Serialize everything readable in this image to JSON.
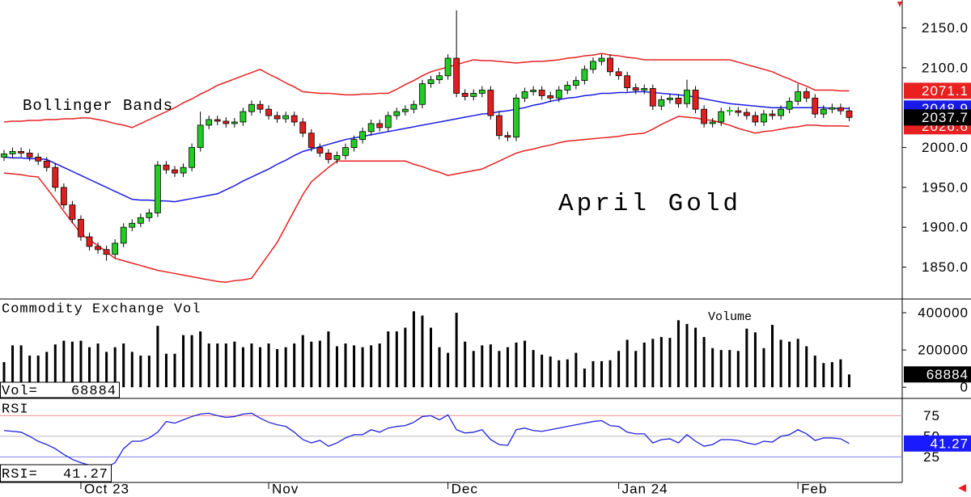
{
  "chart_data": [
    {
      "type": "candlestick",
      "annotations": [
        "Bollinger Bands",
        "April Gold"
      ],
      "open": [
        1988,
        1992,
        1995,
        1993,
        1988,
        1983,
        1975,
        1950,
        1928,
        1910,
        1888,
        1876,
        1872,
        1866,
        1880,
        1900,
        1905,
        1912,
        1918,
        1978,
        1972,
        1968,
        1975,
        2000,
        2028,
        2035,
        2033,
        2030,
        2032,
        2045,
        2054,
        2048,
        2040,
        2036,
        2040,
        2032,
        2018,
        2000,
        1993,
        1985,
        1990,
        2000,
        2010,
        2020,
        2030,
        2025,
        2040,
        2045,
        2048,
        2054,
        2080,
        2085,
        2090,
        2112,
        2068,
        2064,
        2068,
        2072,
        2040,
        2015,
        2013,
        2062,
        2070,
        2072,
        2065,
        2062,
        2072,
        2078,
        2084,
        2098,
        2108,
        2112,
        2095,
        2090,
        2075,
        2072,
        2074,
        2052,
        2060,
        2062,
        2055,
        2072,
        2048,
        2030,
        2032,
        2045,
        2046,
        2044,
        2040,
        2032,
        2042,
        2040,
        2048,
        2058,
        2070,
        2062,
        2042,
        2048,
        2050,
        2046
      ],
      "high": [
        1997,
        2000,
        2000,
        1998,
        1993,
        1988,
        1980,
        1955,
        1933,
        1915,
        1893,
        1881,
        1877,
        1885,
        1905,
        1910,
        1917,
        1923,
        1983,
        1983,
        1977,
        1980,
        2005,
        2045,
        2040,
        2040,
        2038,
        2037,
        2050,
        2059,
        2059,
        2053,
        2045,
        2045,
        2045,
        2037,
        2023,
        2005,
        1998,
        1995,
        2005,
        2015,
        2025,
        2035,
        2035,
        2045,
        2050,
        2053,
        2059,
        2085,
        2090,
        2095,
        2117,
        2172,
        2073,
        2073,
        2077,
        2077,
        2045,
        2020,
        2067,
        2075,
        2077,
        2077,
        2070,
        2077,
        2083,
        2089,
        2103,
        2113,
        2117,
        2117,
        2100,
        2095,
        2080,
        2079,
        2079,
        2065,
        2067,
        2067,
        2085,
        2077,
        2053,
        2037,
        2050,
        2051,
        2051,
        2049,
        2045,
        2047,
        2047,
        2053,
        2063,
        2080,
        2075,
        2067,
        2053,
        2055,
        2055,
        2051
      ],
      "low": [
        1983,
        1987,
        1988,
        1983,
        1978,
        1970,
        1945,
        1923,
        1905,
        1883,
        1871,
        1867,
        1858,
        1861,
        1875,
        1895,
        1900,
        1907,
        1913,
        1967,
        1963,
        1963,
        1970,
        1995,
        2023,
        2028,
        2025,
        2025,
        2027,
        2040,
        2043,
        2035,
        2031,
        2031,
        2027,
        2013,
        1995,
        1988,
        1980,
        1980,
        1985,
        1995,
        2005,
        2015,
        2020,
        2020,
        2035,
        2040,
        2043,
        2049,
        2075,
        2080,
        2085,
        2063,
        2059,
        2059,
        2063,
        2035,
        2010,
        2008,
        2008,
        2057,
        2065,
        2060,
        2057,
        2057,
        2067,
        2073,
        2079,
        2093,
        2103,
        2090,
        2085,
        2070,
        2067,
        2067,
        2047,
        2047,
        2055,
        2050,
        2050,
        2043,
        2025,
        2025,
        2027,
        2040,
        2039,
        2035,
        2027,
        2027,
        2035,
        2035,
        2043,
        2053,
        2057,
        2037,
        2037,
        2043,
        2041,
        2033
      ],
      "close": [
        1992,
        1995,
        1993,
        1988,
        1983,
        1975,
        1950,
        1928,
        1910,
        1888,
        1876,
        1872,
        1866,
        1880,
        1900,
        1905,
        1912,
        1918,
        1978,
        1972,
        1968,
        1975,
        2000,
        2028,
        2035,
        2033,
        2030,
        2032,
        2045,
        2054,
        2048,
        2040,
        2036,
        2040,
        2032,
        2018,
        2000,
        1993,
        1985,
        1990,
        2000,
        2010,
        2020,
        2030,
        2025,
        2040,
        2045,
        2048,
        2054,
        2080,
        2085,
        2090,
        2112,
        2068,
        2064,
        2068,
        2072,
        2040,
        2015,
        2013,
        2062,
        2070,
        2072,
        2065,
        2062,
        2072,
        2078,
        2084,
        2098,
        2108,
        2112,
        2095,
        2090,
        2075,
        2072,
        2074,
        2052,
        2060,
        2062,
        2055,
        2072,
        2048,
        2030,
        2032,
        2045,
        2046,
        2044,
        2040,
        2032,
        2042,
        2040,
        2048,
        2058,
        2070,
        2062,
        2042,
        2048,
        2050,
        2046,
        2037.7
      ],
      "up_color": "#22cc22",
      "down_color": "#e02020",
      "last_color": "#000000",
      "bollinger": {
        "upper": {
          "color": "#e82020",
          "values": [
            2032,
            2033,
            2033,
            2034,
            2034,
            2035,
            2035,
            2036,
            2036,
            2037,
            2037,
            2035,
            2033,
            2030,
            2028,
            2025,
            2030,
            2035,
            2040,
            2045,
            2050,
            2056,
            2061,
            2067,
            2072,
            2078,
            2082,
            2086,
            2090,
            2094,
            2098,
            2092,
            2087,
            2081,
            2076,
            2070,
            2069,
            2068,
            2068,
            2067,
            2066,
            2066,
            2067,
            2067,
            2068,
            2068,
            2073,
            2079,
            2084,
            2090,
            2095,
            2098,
            2101,
            2104,
            2107,
            2110,
            2109,
            2109,
            2108,
            2107,
            2106,
            2107,
            2108,
            2108,
            2109,
            2110,
            2112,
            2113,
            2115,
            2116,
            2118,
            2116,
            2115,
            2113,
            2112,
            2110,
            2110,
            2110,
            2110,
            2110,
            2110,
            2110,
            2110,
            2110,
            2110,
            2110,
            2107,
            2104,
            2101,
            2098,
            2095,
            2090,
            2086,
            2081,
            2077,
            2072,
            2072,
            2072,
            2071,
            2071.1
          ]
        },
        "middle": {
          "color": "#1a1ae6",
          "values": [
            1988,
            1987,
            1987,
            1986,
            1986,
            1985,
            1980,
            1975,
            1970,
            1965,
            1960,
            1955,
            1950,
            1945,
            1940,
            1935,
            1934,
            1934,
            1933,
            1933,
            1932,
            1934,
            1936,
            1938,
            1940,
            1942,
            1947,
            1952,
            1958,
            1963,
            1968,
            1973,
            1979,
            1984,
            1990,
            1995,
            1998,
            2001,
            2004,
            2007,
            2010,
            2012,
            2014,
            2016,
            2018,
            2020,
            2022,
            2024,
            2026,
            2028,
            2030,
            2032,
            2034,
            2036,
            2038,
            2040,
            2042,
            2043,
            2045,
            2046,
            2048,
            2050,
            2053,
            2055,
            2058,
            2060,
            2062,
            2063,
            2065,
            2066,
            2068,
            2068,
            2069,
            2069,
            2070,
            2070,
            2069,
            2068,
            2067,
            2066,
            2065,
            2063,
            2061,
            2059,
            2057,
            2055,
            2054,
            2053,
            2052,
            2051,
            2050,
            2050,
            2050,
            2050,
            2050,
            2050,
            2050,
            2049,
            2049,
            2048.9
          ]
        },
        "lower": {
          "color": "#e82020",
          "values": [
            1968,
            1967,
            1966,
            1964,
            1963,
            1949,
            1935,
            1920,
            1906,
            1892,
            1884,
            1877,
            1869,
            1861,
            1858,
            1855,
            1852,
            1849,
            1846,
            1844,
            1842,
            1840,
            1838,
            1836,
            1834,
            1832,
            1831,
            1833,
            1834,
            1836,
            1851,
            1866,
            1881,
            1901,
            1921,
            1941,
            1957,
            1966,
            1975,
            1983,
            1983,
            1983,
            1983,
            1983,
            1983,
            1983,
            1983,
            1983,
            1979,
            1976,
            1972,
            1969,
            1965,
            1967,
            1969,
            1971,
            1973,
            1978,
            1983,
            1988,
            1993,
            1996,
            1998,
            2001,
            2003,
            2006,
            2008,
            2009,
            2010,
            2011,
            2012,
            2013,
            2014,
            2016,
            2017,
            2018,
            2023,
            2029,
            2034,
            2039,
            2038,
            2037,
            2035,
            2034,
            2031,
            2028,
            2024,
            2021,
            2018,
            2020,
            2021,
            2023,
            2025,
            2026,
            2028,
            2028,
            2027,
            2027,
            2027,
            2026.6
          ]
        }
      },
      "ylim": [
        1810,
        2185
      ],
      "yticks": [
        {
          "value": 2150,
          "label": "2150.0"
        },
        {
          "value": 2100,
          "label": "2100.0"
        },
        {
          "value": 2000,
          "label": "2000.0"
        },
        {
          "value": 1950,
          "label": "1950.0"
        },
        {
          "value": 1900,
          "label": "1900.0"
        },
        {
          "value": 1850,
          "label": "1850.0"
        }
      ]
    },
    {
      "type": "bar",
      "title": "Commodity Exchange Vol",
      "annotation": "Volume",
      "label": "Vol=",
      "values": [
        135000,
        225000,
        225000,
        170000,
        170000,
        190000,
        230000,
        250000,
        245000,
        250000,
        215000,
        235000,
        190000,
        215000,
        235000,
        190000,
        170000,
        170000,
        330000,
        180000,
        180000,
        280000,
        280000,
        300000,
        235000,
        235000,
        235000,
        245000,
        215000,
        235000,
        215000,
        235000,
        205000,
        215000,
        235000,
        280000,
        245000,
        250000,
        300000,
        220000,
        235000,
        225000,
        215000,
        225000,
        235000,
        300000,
        300000,
        320000,
        408000,
        385000,
        320000,
        215000,
        185000,
        400000,
        245000,
        195000,
        225000,
        230000,
        195000,
        215000,
        240000,
        250000,
        200000,
        175000,
        165000,
        145000,
        150000,
        185000,
        100000,
        140000,
        140000,
        145000,
        195000,
        255000,
        195000,
        240000,
        260000,
        270000,
        265000,
        360000,
        340000,
        320000,
        270000,
        210000,
        200000,
        200000,
        195000,
        315000,
        295000,
        210000,
        335000,
        255000,
        245000,
        260000,
        220000,
        170000,
        130000,
        135000,
        150000,
        68884
      ],
      "color": "#000000",
      "last_color": "#000000",
      "ylim": [
        -60000,
        474000
      ],
      "yticks": [
        400000,
        200000,
        0
      ]
    },
    {
      "type": "line",
      "title": "RSI",
      "label": "RSI=",
      "categories": [
        null,
        null,
        null,
        null,
        null,
        null,
        null,
        null,
        null,
        "Oct 23",
        null,
        null,
        null,
        null,
        null,
        null,
        null,
        null,
        null,
        null,
        null,
        null,
        null,
        null,
        null,
        null,
        null,
        null,
        null,
        null,
        null,
        "Nov",
        null,
        null,
        null,
        null,
        null,
        null,
        null,
        null,
        null,
        null,
        null,
        null,
        null,
        null,
        null,
        null,
        null,
        null,
        null,
        null,
        "Dec",
        null,
        null,
        null,
        null,
        null,
        null,
        null,
        null,
        null,
        null,
        null,
        null,
        null,
        null,
        null,
        null,
        null,
        null,
        null,
        "Jan 24",
        null,
        null,
        null,
        null,
        null,
        null,
        null,
        null,
        null,
        null,
        null,
        null,
        null,
        null,
        null,
        null,
        null,
        null,
        null,
        null,
        "Feb",
        null,
        null,
        null,
        null,
        null,
        null
      ],
      "values": [
        57,
        56,
        55,
        50,
        44,
        40,
        35,
        28,
        22,
        18,
        15,
        13,
        12,
        18,
        35,
        44,
        44,
        48,
        55,
        68,
        66,
        70,
        74,
        77,
        78,
        75,
        73,
        74,
        77,
        78,
        72,
        67,
        64,
        62,
        55,
        46,
        42,
        45,
        38,
        42,
        48,
        52,
        52,
        58,
        55,
        60,
        62,
        63,
        67,
        74,
        75,
        70,
        76,
        58,
        54,
        55,
        58,
        46,
        40,
        39,
        58,
        60,
        57,
        56,
        58,
        60,
        62,
        64,
        66,
        68,
        69,
        63,
        62,
        55,
        53,
        53,
        42,
        46,
        47,
        42,
        52,
        44,
        38,
        40,
        46,
        46,
        45,
        42,
        40,
        44,
        43,
        50,
        52,
        58,
        53,
        45,
        48,
        48,
        47,
        41.27
      ],
      "color": "#2020dd",
      "last_color": "#1a1aff",
      "ylim": [
        -6,
        96
      ],
      "yticks": [
        75,
        50,
        25
      ],
      "grid_colors": [
        "#f09090",
        "#b8b8b8",
        "#8080f0"
      ]
    }
  ]
}
